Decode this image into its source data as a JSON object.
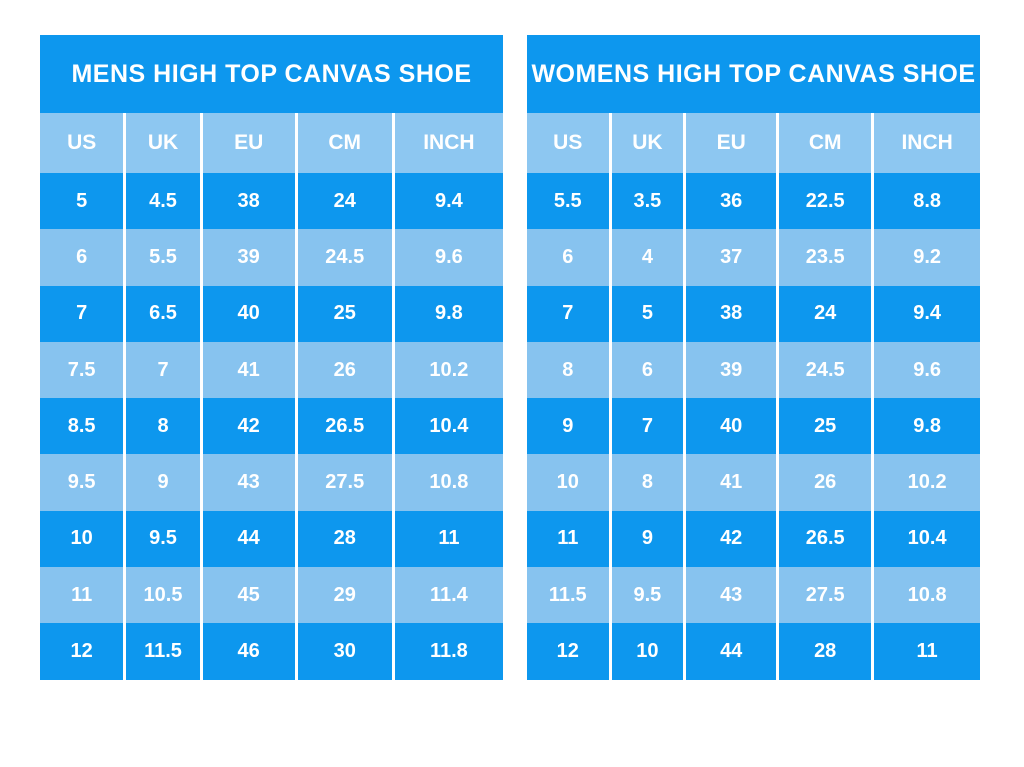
{
  "colors": {
    "bright_blue": "#0d97ee",
    "light_blue": "#87c3ef",
    "header_blue": "#8dc7f1",
    "separator_white": "#ffffff",
    "text_white": "#ffffff",
    "background": "#ffffff"
  },
  "chart_data": [
    {
      "type": "table",
      "title": "MENS HIGH TOP CANVAS SHOE",
      "columns": [
        "US",
        "UK",
        "EU",
        "CM",
        "INCH"
      ],
      "rows": [
        [
          "5",
          "4.5",
          "38",
          "24",
          "9.4"
        ],
        [
          "6",
          "5.5",
          "39",
          "24.5",
          "9.6"
        ],
        [
          "7",
          "6.5",
          "40",
          "25",
          "9.8"
        ],
        [
          "7.5",
          "7",
          "41",
          "26",
          "10.2"
        ],
        [
          "8.5",
          "8",
          "42",
          "26.5",
          "10.4"
        ],
        [
          "9.5",
          "9",
          "43",
          "27.5",
          "10.8"
        ],
        [
          "10",
          "9.5",
          "44",
          "28",
          "11"
        ],
        [
          "11",
          "10.5",
          "45",
          "29",
          "11.4"
        ],
        [
          "12",
          "11.5",
          "46",
          "30",
          "11.8"
        ]
      ]
    },
    {
      "type": "table",
      "title": "WOMENS HIGH TOP CANVAS SHOE",
      "columns": [
        "US",
        "UK",
        "EU",
        "CM",
        "INCH"
      ],
      "rows": [
        [
          "5.5",
          "3.5",
          "36",
          "22.5",
          "8.8"
        ],
        [
          "6",
          "4",
          "37",
          "23.5",
          "9.2"
        ],
        [
          "7",
          "5",
          "38",
          "24",
          "9.4"
        ],
        [
          "8",
          "6",
          "39",
          "24.5",
          "9.6"
        ],
        [
          "9",
          "7",
          "40",
          "25",
          "9.8"
        ],
        [
          "10",
          "8",
          "41",
          "26",
          "10.2"
        ],
        [
          "11",
          "9",
          "42",
          "26.5",
          "10.4"
        ],
        [
          "11.5",
          "9.5",
          "43",
          "27.5",
          "10.8"
        ],
        [
          "12",
          "10",
          "44",
          "28",
          "11"
        ]
      ]
    }
  ]
}
